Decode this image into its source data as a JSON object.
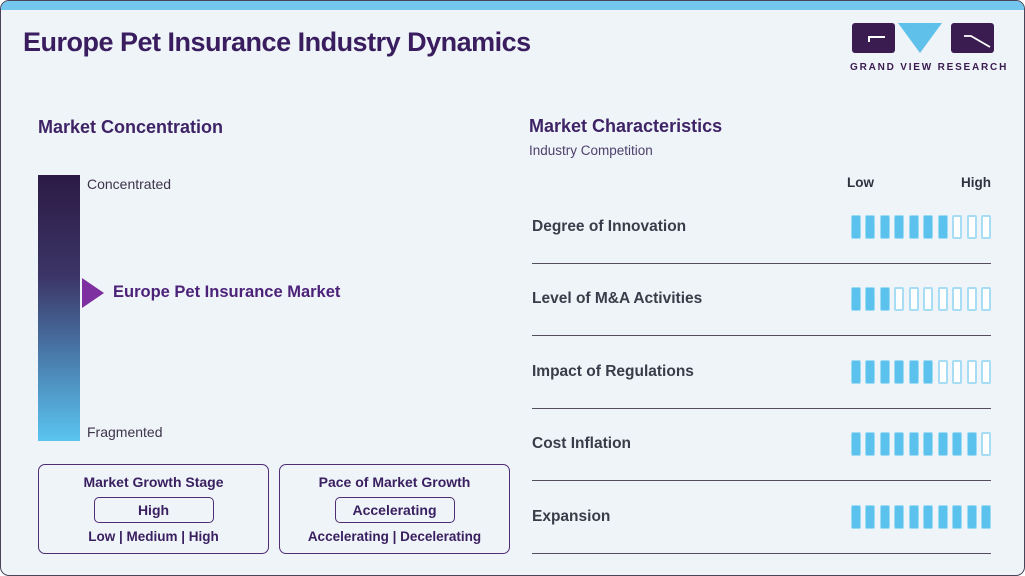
{
  "page": {
    "title": "Europe Pet Insurance Industry Dynamics"
  },
  "logo": {
    "name": "GRAND VIEW RESEARCH"
  },
  "colors": {
    "accent_cyan": "#5bc2ee",
    "topbar_cyan": "#73c7ee",
    "brand_purple": "#3a1c50",
    "tick_empty_border": "#a6dcf4",
    "gradient_top": "#2c1a45",
    "gradient_bottom": "#5ac4ef",
    "arrow_purple": "#7e2fa0"
  },
  "concentration": {
    "heading": "Market Concentration",
    "top_label": "Concentrated",
    "bottom_label": "Fragmented",
    "marker_label": "Europe Pet Insurance Market"
  },
  "growth_stage": {
    "title": "Market Growth Stage",
    "value": "High",
    "options": "Low | Medium | High"
  },
  "growth_pace": {
    "title": "Pace of Market Growth",
    "value": "Accelerating",
    "options": "Accelerating | Decelerating"
  },
  "characteristics": {
    "heading": "Market Characteristics",
    "subheading": "Industry Competition",
    "scale_low": "Low",
    "scale_high": "High",
    "rows": [
      {
        "label": "Degree of Innovation",
        "value": 7,
        "max": 10
      },
      {
        "label": "Level of M&A Activities",
        "value": 3,
        "max": 10
      },
      {
        "label": "Impact of Regulations",
        "value": 6,
        "max": 10
      },
      {
        "label": "Cost Inflation",
        "value": 9,
        "max": 10
      },
      {
        "label": "Expansion",
        "value": 10,
        "max": 10
      }
    ]
  },
  "chart_data": {
    "type": "bar",
    "title": "Market Characteristics — Industry Competition",
    "categories": [
      "Degree of Innovation",
      "Level of M&A Activities",
      "Impact of Regulations",
      "Cost Inflation",
      "Expansion"
    ],
    "values": [
      7,
      3,
      6,
      9,
      10
    ],
    "xlim": [
      0,
      10
    ],
    "scale_labels": [
      "Low",
      "High"
    ],
    "ticks_per_row": 10,
    "legend_position": "none",
    "extra": {
      "market_concentration_scale": [
        "Concentrated",
        "Fragmented"
      ],
      "market_position": "between middle and fragmented end",
      "market_growth_stage": "High",
      "pace_of_market_growth": "Accelerating"
    }
  }
}
